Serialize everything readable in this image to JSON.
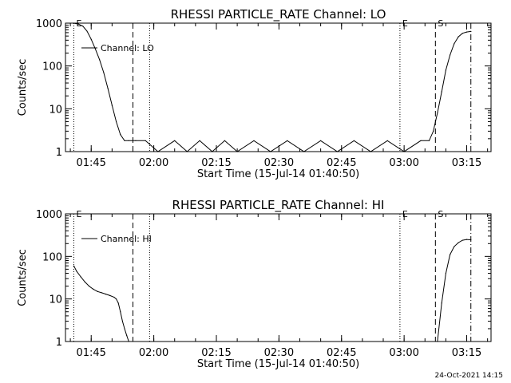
{
  "chart_data": [
    {
      "type": "line",
      "title": "RHESSI PARTICLE_RATE Channel: LO",
      "xlabel": "Start Time (15-Jul-14 01:40:50)",
      "ylabel": "Counts/sec",
      "yscale": "log",
      "ylim": [
        1,
        1000
      ],
      "xlim_minutes_after_start": [
        -2.0,
        100.0
      ],
      "xticks": [
        "01:45",
        "02:00",
        "02:15",
        "02:30",
        "02:45",
        "03:00",
        "03:15"
      ],
      "yticks": [
        "1",
        "10",
        "100",
        "1000"
      ],
      "legend": "Channel: LO",
      "series": [
        {
          "name": "Channel: LO",
          "x": [
            "01:40:50",
            "01:42:00",
            "01:43:00",
            "01:44:00",
            "01:45:00",
            "01:46:00",
            "01:47:00",
            "01:48:00",
            "01:49:00",
            "01:50:00",
            "01:51:00",
            "01:52:00",
            "01:53:00",
            "01:54:00",
            "01:55:00",
            "01:55:40",
            "01:58:00",
            "02:01:00",
            "02:05:00",
            "02:08:00",
            "02:11:00",
            "02:14:00",
            "02:17:00",
            "02:20:00",
            "02:24:00",
            "02:28:00",
            "02:32:00",
            "02:36:00",
            "02:40:00",
            "02:44:00",
            "02:48:00",
            "02:52:00",
            "02:56:00",
            "03:00:00",
            "03:04:00",
            "03:06:00",
            "03:07:00",
            "03:08:00",
            "03:09:00",
            "03:10:00",
            "03:11:00",
            "03:12:00",
            "03:13:00",
            "03:14:00",
            "03:15:00",
            "03:16:00"
          ],
          "values": [
            1000,
            950,
            850,
            650,
            420,
            250,
            140,
            70,
            30,
            12,
            5,
            2.5,
            1.8,
            1.8,
            1.8,
            1.8,
            1.8,
            1,
            1.8,
            1,
            1.8,
            1,
            1.8,
            1,
            1.8,
            1,
            1.8,
            1,
            1.8,
            1,
            1.8,
            1,
            1.8,
            1,
            1.8,
            1.8,
            3,
            8,
            25,
            80,
            180,
            330,
            480,
            580,
            620,
            640
          ]
        }
      ],
      "annotations": [
        {
          "label": "E",
          "time": "01:40:50",
          "style": "dotted"
        },
        {
          "label": "",
          "time": "01:55:00",
          "style": "dashed"
        },
        {
          "label": "",
          "time": "01:59:00",
          "style": "dotted"
        },
        {
          "label": "E",
          "time": "02:59:00",
          "style": "dotted"
        },
        {
          "label": "S",
          "time": "03:07:30",
          "style": "dashed"
        },
        {
          "label": "",
          "time": "03:16:00",
          "style": "dashdot"
        }
      ]
    },
    {
      "type": "line",
      "title": "RHESSI PARTICLE_RATE Channel: HI",
      "xlabel": "Start Time (15-Jul-14 01:40:50)",
      "ylabel": "Counts/sec",
      "yscale": "log",
      "ylim": [
        1,
        1000
      ],
      "xlim_minutes_after_start": [
        -2.0,
        100.0
      ],
      "xticks": [
        "01:45",
        "02:00",
        "02:15",
        "02:30",
        "02:45",
        "03:00",
        "03:15"
      ],
      "yticks": [
        "1",
        "10",
        "100",
        "1000"
      ],
      "legend": "Channel: HI",
      "series": [
        {
          "name": "Channel: HI",
          "x": [
            "01:40:50",
            "01:41:30",
            "01:42:30",
            "01:43:30",
            "01:44:30",
            "01:45:30",
            "01:46:30",
            "01:47:30",
            "01:48:30",
            "01:49:30",
            "01:50:30",
            "01:51:00",
            "01:51:30",
            "01:52:00",
            "01:52:30",
            "01:53:00",
            "01:53:30",
            "01:54:00",
            "03:08:00",
            "03:09:00",
            "03:10:00",
            "03:11:00",
            "03:12:00",
            "03:13:00",
            "03:14:00",
            "03:15:00",
            "03:16:00"
          ],
          "values": [
            60,
            45,
            33,
            25,
            20,
            17,
            15,
            14,
            13,
            12,
            11,
            10,
            8,
            5,
            3,
            2,
            1.4,
            1,
            1,
            8,
            40,
            110,
            170,
            210,
            240,
            250,
            245
          ]
        }
      ],
      "annotations": [
        {
          "label": "E",
          "time": "01:40:50",
          "style": "dotted"
        },
        {
          "label": "",
          "time": "01:55:00",
          "style": "dashed"
        },
        {
          "label": "",
          "time": "01:59:00",
          "style": "dotted"
        },
        {
          "label": "E",
          "time": "02:59:00",
          "style": "dotted"
        },
        {
          "label": "S",
          "time": "03:07:30",
          "style": "dashed"
        },
        {
          "label": "",
          "time": "03:16:00",
          "style": "dashdot"
        }
      ]
    }
  ],
  "footer": {
    "timestamp": "24-Oct-2021 14:15"
  }
}
